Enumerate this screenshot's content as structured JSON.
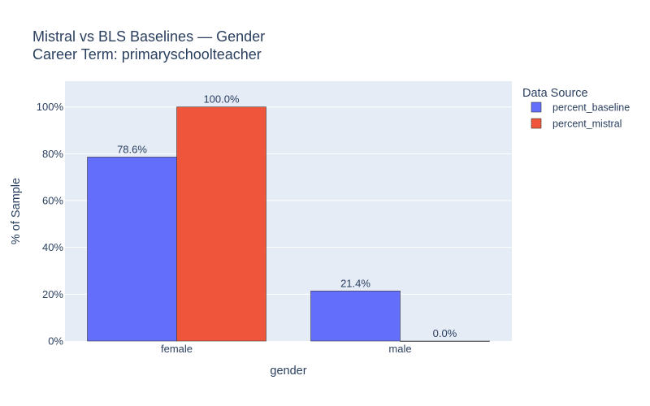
{
  "chart_data": {
    "type": "bar",
    "title": "Mistral vs BLS Baselines — Gender",
    "subtitle": "Career Term: primaryschoolteacher",
    "xlabel": "gender",
    "ylabel": "% of Sample",
    "categories": [
      "female",
      "male"
    ],
    "series": [
      {
        "name": "percent_baseline",
        "values": [
          78.6,
          21.4
        ],
        "labels": [
          "78.6%",
          "21.4%"
        ],
        "color": "#636efa"
      },
      {
        "name": "percent_mistral",
        "values": [
          100.0,
          0.0
        ],
        "labels": [
          "100.0%",
          "0.0%"
        ],
        "color": "#ef553b"
      }
    ],
    "ylim": [
      0,
      111
    ],
    "yticks": [
      0,
      20,
      40,
      60,
      80,
      100
    ],
    "ytick_labels": [
      "0%",
      "20%",
      "40%",
      "60%",
      "80%",
      "100%"
    ],
    "legend_title": "Data Source",
    "legend_position": "right",
    "grid": true,
    "plot_background": "#e5ecf6"
  }
}
